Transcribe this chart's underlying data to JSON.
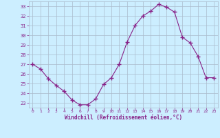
{
  "x": [
    0,
    1,
    2,
    3,
    4,
    5,
    6,
    7,
    8,
    9,
    10,
    11,
    12,
    13,
    14,
    15,
    16,
    17,
    18,
    19,
    20,
    21,
    22,
    23
  ],
  "y": [
    27.0,
    26.5,
    25.5,
    24.8,
    24.2,
    23.3,
    22.8,
    22.8,
    23.4,
    24.9,
    25.6,
    27.0,
    29.3,
    31.0,
    32.0,
    32.5,
    33.2,
    32.9,
    32.4,
    29.8,
    29.2,
    27.8,
    25.6,
    25.6
  ],
  "line_color": "#882288",
  "marker": "+",
  "marker_size": 4,
  "bg_color": "#cceeff",
  "grid_color": "#aabbcc",
  "xlabel": "Windchill (Refroidissement éolien,°C)",
  "xlabel_color": "#882288",
  "tick_color": "#882288",
  "ylim": [
    22.5,
    33.5
  ],
  "xlim": [
    -0.5,
    23.5
  ],
  "yticks": [
    23,
    24,
    25,
    26,
    27,
    28,
    29,
    30,
    31,
    32,
    33
  ],
  "xticks": [
    0,
    1,
    2,
    3,
    4,
    5,
    6,
    7,
    8,
    9,
    10,
    11,
    12,
    13,
    14,
    15,
    16,
    17,
    18,
    19,
    20,
    21,
    22,
    23
  ]
}
